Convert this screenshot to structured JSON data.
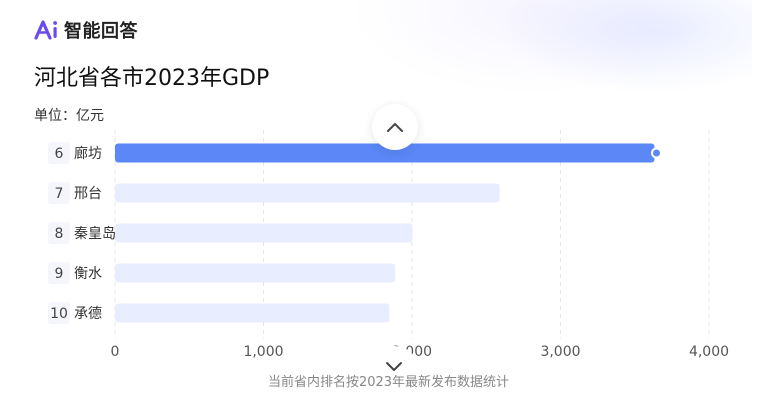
{
  "brand": {
    "name": "智能回答",
    "logo_text": "Ai",
    "accent": "#6c4cf0"
  },
  "chart_data": {
    "type": "bar",
    "orientation": "horizontal",
    "title": "河北省各市2023年GDP",
    "unit_label": "单位：亿元",
    "ranks": [
      "6",
      "7",
      "8",
      "9",
      "10"
    ],
    "categories": [
      "廊坊",
      "邢台",
      "秦皇岛",
      "衡水",
      "承德"
    ],
    "values": [
      3633,
      2590,
      2004,
      1887,
      1848
    ],
    "highlight_index": 0,
    "xlim": [
      0,
      4000
    ],
    "xticks": [
      0,
      1000,
      2000,
      3000,
      4000
    ],
    "xtick_labels": [
      "0",
      "1,000",
      "2,000",
      "3,000",
      "4,000"
    ],
    "grid": "vertical dashed",
    "colors": {
      "highlight": "#5b87f7",
      "bar": "#e8eeff",
      "rank_bg": "#f4f6fb"
    },
    "note": "当前省内排名按2023年最新发布数据统计"
  },
  "controls": {
    "collapse_icon": "chevron-up-icon",
    "expand_icon": "chevron-down-icon"
  }
}
